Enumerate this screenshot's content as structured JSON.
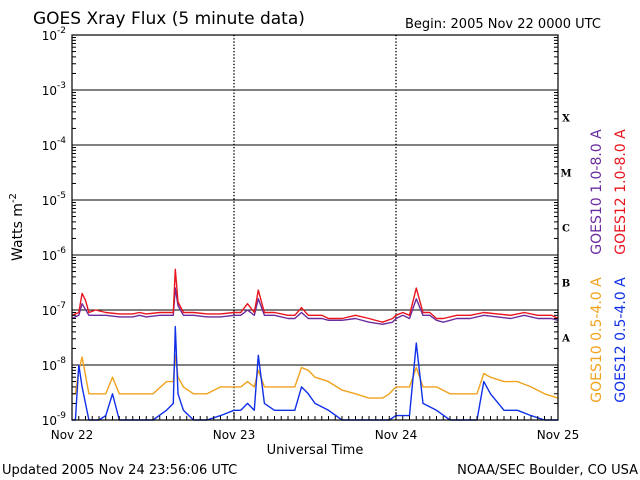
{
  "header": {
    "title": "GOES Xray Flux (5 minute data)",
    "begin_label": "Begin:  2005 Nov 22 0000 UTC"
  },
  "footer": {
    "updated": "Updated 2005 Nov 24 23:56:06 UTC",
    "source": "NOAA/SEC Boulder, CO USA"
  },
  "colors": {
    "goes10_long": "#6a2c9e",
    "goes12_long": "#e8141e",
    "goes10_short": "#f0a21e",
    "goes12_short": "#1030e8"
  },
  "chart_data": {
    "type": "line",
    "title": "GOES Xray Flux (5 minute data)",
    "xlabel": "Universal Time",
    "ylabel": "Watts m",
    "ylabel_superscript": "-2",
    "y_scale": "log",
    "ylim": [
      1e-09,
      0.01
    ],
    "y_ticks": [
      {
        "value": 0.01,
        "base": "10",
        "exp": "-2"
      },
      {
        "value": 0.001,
        "base": "10",
        "exp": "-3"
      },
      {
        "value": 0.0001,
        "base": "10",
        "exp": "-4"
      },
      {
        "value": 1e-05,
        "base": "10",
        "exp": "-5"
      },
      {
        "value": 1e-06,
        "base": "10",
        "exp": "-6"
      },
      {
        "value": 1e-07,
        "base": "10",
        "exp": "-7"
      },
      {
        "value": 1e-08,
        "base": "10",
        "exp": "-8"
      },
      {
        "value": 1e-09,
        "base": "10",
        "exp": "-9"
      }
    ],
    "xlim": [
      0,
      72
    ],
    "x_ticks": [
      {
        "hours": 0,
        "label": "Nov 22"
      },
      {
        "hours": 24,
        "label": "Nov 23"
      },
      {
        "hours": 48,
        "label": "Nov 24"
      },
      {
        "hours": 72,
        "label": "Nov 25"
      }
    ],
    "flare_classes": [
      {
        "label": "X",
        "low": 0.0001,
        "high": 0.001
      },
      {
        "label": "M",
        "low": 1e-05,
        "high": 0.0001
      },
      {
        "label": "C",
        "low": 1e-06,
        "high": 1e-05
      },
      {
        "label": "B",
        "low": 1e-07,
        "high": 1e-06
      },
      {
        "label": "A",
        "low": 1e-08,
        "high": 1e-07
      }
    ],
    "grid": "horizontal lines at each decade; dashed day separators",
    "series": [
      {
        "name": "GOES10 1.0-8.0 A",
        "color": "#6a2c9e",
        "x": [
          0,
          1,
          1.5,
          2.5,
          3.5,
          5,
          7,
          9,
          10,
          11,
          13,
          15,
          15.3,
          15.7,
          16.5,
          18,
          20,
          22,
          24,
          25,
          26,
          27,
          27.6,
          28.5,
          30,
          32,
          33,
          34,
          35,
          36,
          37,
          38,
          40,
          42,
          44,
          46,
          47.5,
          48,
          49,
          50,
          51,
          52,
          53,
          54,
          55,
          57,
          59,
          61,
          63,
          65,
          67,
          69,
          71,
          72
        ],
        "y": [
          7e-08,
          8e-08,
          1.3e-07,
          8e-08,
          8e-08,
          8e-08,
          7.5e-08,
          7.5e-08,
          8e-08,
          7.5e-08,
          8e-08,
          8e-08,
          2.5e-07,
          1.2e-07,
          8e-08,
          8e-08,
          7.5e-08,
          7.5e-08,
          8e-08,
          8e-08,
          1e-07,
          8e-08,
          1.6e-07,
          8e-08,
          8e-08,
          7e-08,
          7e-08,
          9e-08,
          7e-08,
          7e-08,
          7e-08,
          6.5e-08,
          6.5e-08,
          7e-08,
          6e-08,
          5.5e-08,
          6e-08,
          7e-08,
          8e-08,
          7e-08,
          1.6e-07,
          8e-08,
          8e-08,
          6.5e-08,
          6e-08,
          7e-08,
          7e-08,
          8e-08,
          7.5e-08,
          7e-08,
          8e-08,
          7e-08,
          7e-08,
          6.5e-08
        ]
      },
      {
        "name": "GOES12 1.0-8.0 A",
        "color": "#e8141e",
        "x": [
          0,
          1,
          1.5,
          2,
          2.5,
          3.5,
          5,
          7,
          9,
          10,
          11,
          13,
          15,
          15.3,
          15.7,
          16.5,
          18,
          20,
          22,
          24,
          25,
          26,
          27,
          27.6,
          28.5,
          30,
          32,
          33,
          34,
          35,
          36,
          37,
          38,
          40,
          42,
          44,
          46,
          47.5,
          48,
          49,
          50,
          51,
          52,
          53,
          54,
          55,
          57,
          59,
          61,
          63,
          65,
          67,
          69,
          71,
          72
        ],
        "y": [
          8e-08,
          9e-08,
          2e-07,
          1.5e-07,
          9e-08,
          1e-07,
          9e-08,
          8.5e-08,
          8.5e-08,
          9e-08,
          8.5e-08,
          9e-08,
          9e-08,
          5.5e-07,
          1.4e-07,
          9e-08,
          9e-08,
          8.5e-08,
          8.5e-08,
          9e-08,
          9e-08,
          1.3e-07,
          9e-08,
          2.3e-07,
          9e-08,
          9e-08,
          8e-08,
          8e-08,
          1.1e-07,
          8e-08,
          8e-08,
          8e-08,
          7e-08,
          7e-08,
          8e-08,
          7e-08,
          6e-08,
          7e-08,
          8e-08,
          9e-08,
          8e-08,
          2.5e-07,
          9e-08,
          9e-08,
          7e-08,
          7e-08,
          8e-08,
          8e-08,
          9e-08,
          8.5e-08,
          8e-08,
          9e-08,
          8e-08,
          8e-08,
          7e-08
        ]
      },
      {
        "name": "GOES10 0.5-4.0 A",
        "color": "#f0a21e",
        "x": [
          0,
          0.5,
          1,
          1.5,
          2.5,
          4,
          5,
          6,
          7,
          8,
          10,
          12,
          14,
          15,
          15.3,
          15.7,
          16.5,
          18,
          20,
          22,
          24,
          25,
          26,
          27,
          27.6,
          28.5,
          30,
          32,
          33,
          34,
          35,
          36,
          38,
          40,
          42,
          44,
          45,
          46,
          47,
          48,
          49,
          50,
          51,
          52,
          54,
          56,
          58,
          60,
          61,
          62,
          64,
          66,
          68,
          70,
          72
        ],
        "y": [
          3e-09,
          3e-09,
          8e-09,
          1.4e-08,
          3e-09,
          3e-09,
          3e-09,
          6e-09,
          3e-09,
          3e-09,
          3e-09,
          3e-09,
          5e-09,
          5e-09,
          1.5e-08,
          6e-09,
          4e-09,
          3e-09,
          3e-09,
          4e-09,
          4e-09,
          4e-09,
          5e-09,
          4e-09,
          8e-09,
          4e-09,
          4e-09,
          4e-09,
          4e-09,
          9e-09,
          8e-09,
          6e-09,
          5e-09,
          3.5e-09,
          3e-09,
          2.5e-09,
          2.5e-09,
          2.5e-09,
          3e-09,
          4e-09,
          4e-09,
          4e-09,
          9e-09,
          4e-09,
          4e-09,
          3e-09,
          3e-09,
          3e-09,
          7e-09,
          6e-09,
          5e-09,
          5e-09,
          4e-09,
          3e-09,
          2.5e-09
        ]
      },
      {
        "name": "GOES12 0.5-4.0 A",
        "color": "#1030e8",
        "x": [
          0,
          0.5,
          1,
          1.5,
          2.5,
          4,
          5,
          6,
          7,
          8,
          10,
          12,
          14,
          15,
          15.3,
          15.7,
          16.5,
          18,
          20,
          22,
          24,
          25,
          26,
          27,
          27.6,
          28.5,
          30,
          32,
          33,
          34,
          35,
          36,
          38,
          40,
          42,
          44,
          45,
          46,
          47,
          48,
          49,
          50,
          51,
          52,
          54,
          56,
          58,
          60,
          61,
          62,
          64,
          66,
          68,
          70,
          72
        ],
        "y": [
          1e-09,
          1e-09,
          1e-08,
          4e-09,
          1e-09,
          1e-09,
          1.2e-09,
          3e-09,
          1e-09,
          1e-09,
          1e-09,
          1e-09,
          1.5e-09,
          2e-09,
          5e-08,
          3e-09,
          1.5e-09,
          1e-09,
          1e-09,
          1.2e-09,
          1.5e-09,
          1.5e-09,
          2e-09,
          1.5e-09,
          1.5e-08,
          2e-09,
          1.5e-09,
          1.5e-09,
          1.5e-09,
          4e-09,
          3e-09,
          2e-09,
          1.5e-09,
          1e-09,
          1e-09,
          1e-09,
          1e-09,
          1e-09,
          1e-09,
          1.2e-09,
          1.2e-09,
          1.2e-09,
          2.5e-08,
          2e-09,
          1.5e-09,
          1e-09,
          1e-09,
          1e-09,
          5e-09,
          3e-09,
          1.5e-09,
          1.5e-09,
          1.2e-09,
          1e-09,
          1e-09
        ]
      }
    ]
  }
}
